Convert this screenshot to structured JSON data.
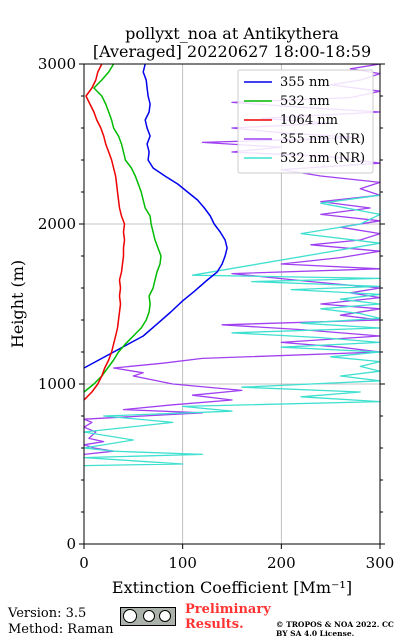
{
  "chart_data": {
    "type": "line",
    "title_line1": "pollyxt_noa at Antikythera",
    "title_line2": "[Averaged] 20220627 18:00-18:59",
    "xlabel": "Extinction Coefficient [Mm⁻¹]",
    "ylabel": "Height (m)",
    "xlim": [
      0,
      300
    ],
    "ylim": [
      0,
      3000
    ],
    "xticks": [
      0,
      100,
      200,
      300
    ],
    "yticks": [
      0,
      1000,
      2000,
      3000
    ],
    "grid": true,
    "legend_position": "top-right",
    "series": [
      {
        "name": "355 nm",
        "color": "#0000ee",
        "points": [
          [
            0,
            1100
          ],
          [
            15,
            1150
          ],
          [
            30,
            1200
          ],
          [
            45,
            1250
          ],
          [
            60,
            1300
          ],
          [
            75,
            1380
          ],
          [
            88,
            1450
          ],
          [
            100,
            1520
          ],
          [
            112,
            1580
          ],
          [
            125,
            1650
          ],
          [
            135,
            1700
          ],
          [
            140,
            1750
          ],
          [
            143,
            1800
          ],
          [
            145,
            1850
          ],
          [
            143,
            1900
          ],
          [
            138,
            1950
          ],
          [
            132,
            2000
          ],
          [
            128,
            2050
          ],
          [
            122,
            2100
          ],
          [
            115,
            2150
          ],
          [
            105,
            2200
          ],
          [
            95,
            2250
          ],
          [
            82,
            2300
          ],
          [
            70,
            2350
          ],
          [
            65,
            2400
          ],
          [
            66,
            2450
          ],
          [
            64,
            2500
          ],
          [
            67,
            2550
          ],
          [
            64,
            2600
          ],
          [
            62,
            2650
          ],
          [
            66,
            2700
          ],
          [
            67,
            2750
          ],
          [
            65,
            2800
          ],
          [
            64,
            2850
          ],
          [
            63,
            2900
          ],
          [
            60,
            2950
          ],
          [
            62,
            3000
          ]
        ]
      },
      {
        "name": "532 nm",
        "color": "#00bb00",
        "points": [
          [
            0,
            950
          ],
          [
            10,
            1000
          ],
          [
            18,
            1050
          ],
          [
            24,
            1100
          ],
          [
            30,
            1150
          ],
          [
            35,
            1200
          ],
          [
            42,
            1250
          ],
          [
            50,
            1300
          ],
          [
            58,
            1350
          ],
          [
            63,
            1400
          ],
          [
            66,
            1450
          ],
          [
            67,
            1500
          ],
          [
            66,
            1550
          ],
          [
            70,
            1600
          ],
          [
            72,
            1650
          ],
          [
            74,
            1700
          ],
          [
            77,
            1750
          ],
          [
            78,
            1800
          ],
          [
            75,
            1850
          ],
          [
            72,
            1900
          ],
          [
            70,
            1950
          ],
          [
            68,
            2000
          ],
          [
            67,
            2050
          ],
          [
            62,
            2100
          ],
          [
            60,
            2150
          ],
          [
            58,
            2200
          ],
          [
            55,
            2250
          ],
          [
            52,
            2300
          ],
          [
            48,
            2350
          ],
          [
            42,
            2400
          ],
          [
            40,
            2450
          ],
          [
            38,
            2500
          ],
          [
            35,
            2550
          ],
          [
            30,
            2600
          ],
          [
            28,
            2650
          ],
          [
            25,
            2700
          ],
          [
            22,
            2750
          ],
          [
            18,
            2800
          ],
          [
            10,
            2850
          ],
          [
            18,
            2900
          ],
          [
            25,
            2950
          ],
          [
            30,
            3000
          ]
        ]
      },
      {
        "name": "1064 nm",
        "color": "#ee0000",
        "points": [
          [
            0,
            900
          ],
          [
            8,
            950
          ],
          [
            14,
            1000
          ],
          [
            18,
            1050
          ],
          [
            21,
            1100
          ],
          [
            25,
            1150
          ],
          [
            28,
            1200
          ],
          [
            30,
            1250
          ],
          [
            32,
            1300
          ],
          [
            34,
            1350
          ],
          [
            35,
            1400
          ],
          [
            36,
            1450
          ],
          [
            37,
            1500
          ],
          [
            36,
            1550
          ],
          [
            37,
            1600
          ],
          [
            36,
            1650
          ],
          [
            38,
            1700
          ],
          [
            39,
            1750
          ],
          [
            40,
            1800
          ],
          [
            40,
            1850
          ],
          [
            41,
            1900
          ],
          [
            40,
            1950
          ],
          [
            41,
            2000
          ],
          [
            38,
            2050
          ],
          [
            36,
            2100
          ],
          [
            35,
            2150
          ],
          [
            34,
            2200
          ],
          [
            33,
            2250
          ],
          [
            32,
            2300
          ],
          [
            30,
            2350
          ],
          [
            28,
            2400
          ],
          [
            25,
            2450
          ],
          [
            22,
            2500
          ],
          [
            20,
            2550
          ],
          [
            17,
            2600
          ],
          [
            13,
            2650
          ],
          [
            10,
            2700
          ],
          [
            6,
            2750
          ],
          [
            2,
            2800
          ],
          [
            8,
            2850
          ],
          [
            12,
            2900
          ],
          [
            14,
            2950
          ],
          [
            18,
            3000
          ]
        ]
      },
      {
        "name": "355 nm (NR)",
        "color": "#a040f0",
        "points": [
          [
            0,
            560
          ],
          [
            30,
            580
          ],
          [
            10,
            600
          ],
          [
            0,
            620
          ],
          [
            20,
            640
          ],
          [
            5,
            660
          ],
          [
            12,
            700
          ],
          [
            0,
            730
          ],
          [
            8,
            760
          ],
          [
            0,
            780
          ],
          [
            60,
            800
          ],
          [
            120,
            820
          ],
          [
            40,
            840
          ],
          [
            90,
            870
          ],
          [
            150,
            900
          ],
          [
            110,
            930
          ],
          [
            160,
            960
          ],
          [
            90,
            1000
          ],
          [
            50,
            1050
          ],
          [
            60,
            1070
          ],
          [
            30,
            1100
          ],
          [
            80,
            1130
          ],
          [
            120,
            1160
          ],
          [
            300,
            1200
          ],
          [
            260,
            1230
          ],
          [
            200,
            1260
          ],
          [
            300,
            1300
          ],
          [
            220,
            1340
          ],
          [
            140,
            1370
          ],
          [
            300,
            1400
          ],
          [
            260,
            1430
          ],
          [
            300,
            1470
          ],
          [
            240,
            1500
          ],
          [
            300,
            1540
          ],
          [
            270,
            1570
          ],
          [
            300,
            1600
          ],
          [
            230,
            1640
          ],
          [
            150,
            1690
          ],
          [
            300,
            1720
          ],
          [
            200,
            1750
          ],
          [
            260,
            1790
          ],
          [
            300,
            1830
          ],
          [
            230,
            1870
          ],
          [
            280,
            1900
          ],
          [
            300,
            1940
          ],
          [
            260,
            1980
          ],
          [
            300,
            2020
          ],
          [
            240,
            2060
          ],
          [
            290,
            2100
          ],
          [
            240,
            2140
          ],
          [
            300,
            2180
          ],
          [
            280,
            2220
          ],
          [
            300,
            2260
          ],
          [
            240,
            2300
          ],
          [
            200,
            2340
          ],
          [
            300,
            2380
          ],
          [
            250,
            2420
          ],
          [
            150,
            2450
          ],
          [
            200,
            2480
          ],
          [
            120,
            2510
          ],
          [
            280,
            2540
          ],
          [
            200,
            2570
          ],
          [
            150,
            2600
          ],
          [
            250,
            2630
          ],
          [
            180,
            2660
          ],
          [
            300,
            2700
          ],
          [
            220,
            2730
          ],
          [
            150,
            2760
          ],
          [
            270,
            2790
          ],
          [
            300,
            2830
          ],
          [
            250,
            2870
          ],
          [
            280,
            2900
          ],
          [
            300,
            2940
          ],
          [
            270,
            2970
          ],
          [
            300,
            3000
          ]
        ]
      },
      {
        "name": "532 nm (NR)",
        "color": "#40e0d0",
        "points": [
          [
            0,
            490
          ],
          [
            100,
            500
          ],
          [
            50,
            520
          ],
          [
            0,
            540
          ],
          [
            120,
            560
          ],
          [
            30,
            580
          ],
          [
            0,
            600
          ],
          [
            50,
            650
          ],
          [
            0,
            700
          ],
          [
            90,
            760
          ],
          [
            20,
            800
          ],
          [
            150,
            830
          ],
          [
            100,
            860
          ],
          [
            300,
            890
          ],
          [
            220,
            920
          ],
          [
            280,
            950
          ],
          [
            160,
            980
          ],
          [
            300,
            1020
          ],
          [
            260,
            1050
          ],
          [
            300,
            1080
          ],
          [
            280,
            1110
          ],
          [
            300,
            1140
          ],
          [
            250,
            1170
          ],
          [
            300,
            1200
          ],
          [
            200,
            1230
          ],
          [
            300,
            1260
          ],
          [
            240,
            1290
          ],
          [
            150,
            1320
          ],
          [
            300,
            1350
          ],
          [
            220,
            1380
          ],
          [
            300,
            1410
          ],
          [
            280,
            1440
          ],
          [
            240,
            1470
          ],
          [
            300,
            1500
          ],
          [
            260,
            1530
          ],
          [
            300,
            1560
          ],
          [
            210,
            1590
          ],
          [
            300,
            1610
          ],
          [
            170,
            1640
          ],
          [
            300,
            1660
          ],
          [
            110,
            1680
          ],
          [
            300,
            1880
          ],
          [
            220,
            1940
          ],
          [
            280,
            2000
          ],
          [
            300,
            2060
          ],
          [
            240,
            2130
          ],
          [
            300,
            2180
          ]
        ]
      }
    ]
  },
  "footer": {
    "version": "Version: 3.5",
    "method": "Method: Raman",
    "preliminary": "Preliminary Results.",
    "copyright": "© TROPOS & NOA 2022. CC BY SA 4.0 License."
  }
}
